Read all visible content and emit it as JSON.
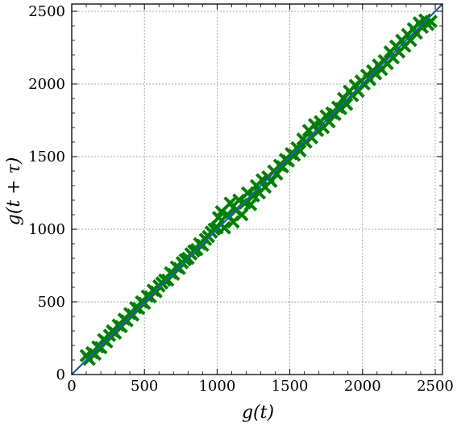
{
  "chart_data": {
    "type": "scatter",
    "xlabel": "g(t)",
    "ylabel": "g(t + τ)",
    "xlim": [
      0,
      2550
    ],
    "ylim": [
      0,
      2550
    ],
    "xticks": [
      0,
      500,
      1000,
      1500,
      2000,
      2500
    ],
    "yticks": [
      0,
      500,
      1000,
      1500,
      2000,
      2500
    ],
    "xtick_labels": [
      "0",
      "500",
      "1000",
      "1500",
      "2000",
      "2500"
    ],
    "ytick_labels": [
      "0",
      "500",
      "1000",
      "1500",
      "2000",
      "2500"
    ],
    "grid": true,
    "series": [
      {
        "marker": "x",
        "color": "#008000",
        "points": [
          [
            100,
            130
          ],
          [
            120,
            105
          ],
          [
            140,
            150
          ],
          [
            160,
            140
          ],
          [
            180,
            190
          ],
          [
            200,
            185
          ],
          [
            220,
            240
          ],
          [
            240,
            225
          ],
          [
            260,
            270
          ],
          [
            280,
            300
          ],
          [
            300,
            285
          ],
          [
            320,
            340
          ],
          [
            340,
            330
          ],
          [
            360,
            380
          ],
          [
            380,
            370
          ],
          [
            400,
            420
          ],
          [
            420,
            410
          ],
          [
            440,
            460
          ],
          [
            460,
            455
          ],
          [
            480,
            500
          ],
          [
            500,
            490
          ],
          [
            520,
            540
          ],
          [
            540,
            535
          ],
          [
            560,
            580
          ],
          [
            580,
            570
          ],
          [
            600,
            610
          ],
          [
            620,
            630
          ],
          [
            640,
            650
          ],
          [
            660,
            650
          ],
          [
            680,
            700
          ],
          [
            700,
            690
          ],
          [
            720,
            740
          ],
          [
            740,
            730
          ],
          [
            760,
            770
          ],
          [
            780,
            790
          ],
          [
            800,
            800
          ],
          [
            820,
            830
          ],
          [
            840,
            850
          ],
          [
            860,
            860
          ],
          [
            880,
            900
          ],
          [
            900,
            890
          ],
          [
            920,
            930
          ],
          [
            940,
            950
          ],
          [
            960,
            980
          ],
          [
            980,
            1000
          ],
          [
            1000,
            1010
          ],
          [
            1010,
            1080
          ],
          [
            1030,
            1120
          ],
          [
            1050,
            1010
          ],
          [
            1070,
            1100
          ],
          [
            1090,
            1180
          ],
          [
            1110,
            1050
          ],
          [
            1130,
            1130
          ],
          [
            1150,
            1200
          ],
          [
            1170,
            1100
          ],
          [
            1190,
            1180
          ],
          [
            1210,
            1250
          ],
          [
            1230,
            1170
          ],
          [
            1250,
            1230
          ],
          [
            1270,
            1300
          ],
          [
            1290,
            1250
          ],
          [
            1310,
            1340
          ],
          [
            1330,
            1290
          ],
          [
            1350,
            1360
          ],
          [
            1370,
            1330
          ],
          [
            1390,
            1400
          ],
          [
            1410,
            1380
          ],
          [
            1430,
            1440
          ],
          [
            1450,
            1430
          ],
          [
            1470,
            1480
          ],
          [
            1490,
            1470
          ],
          [
            1510,
            1520
          ],
          [
            1530,
            1510
          ],
          [
            1550,
            1560
          ],
          [
            1570,
            1540
          ],
          [
            1590,
            1620
          ],
          [
            1610,
            1600
          ],
          [
            1630,
            1680
          ],
          [
            1650,
            1630
          ],
          [
            1670,
            1720
          ],
          [
            1690,
            1680
          ],
          [
            1710,
            1740
          ],
          [
            1730,
            1700
          ],
          [
            1750,
            1780
          ],
          [
            1770,
            1740
          ],
          [
            1790,
            1800
          ],
          [
            1810,
            1790
          ],
          [
            1830,
            1840
          ],
          [
            1850,
            1830
          ],
          [
            1870,
            1900
          ],
          [
            1890,
            1860
          ],
          [
            1910,
            1950
          ],
          [
            1930,
            1920
          ],
          [
            1950,
            1990
          ],
          [
            1970,
            1950
          ],
          [
            1990,
            2020
          ],
          [
            2010,
            2000
          ],
          [
            2030,
            2060
          ],
          [
            2050,
            2030
          ],
          [
            2070,
            2090
          ],
          [
            2090,
            2070
          ],
          [
            2110,
            2130
          ],
          [
            2130,
            2100
          ],
          [
            2150,
            2160
          ],
          [
            2170,
            2140
          ],
          [
            2190,
            2220
          ],
          [
            2210,
            2180
          ],
          [
            2230,
            2260
          ],
          [
            2250,
            2220
          ],
          [
            2270,
            2300
          ],
          [
            2290,
            2260
          ],
          [
            2310,
            2340
          ],
          [
            2330,
            2300
          ],
          [
            2350,
            2380
          ],
          [
            2370,
            2350
          ],
          [
            2390,
            2420
          ],
          [
            2410,
            2390
          ],
          [
            2430,
            2440
          ],
          [
            2450,
            2410
          ],
          [
            2470,
            2430
          ]
        ]
      }
    ],
    "reference_line": {
      "x": [
        0,
        2550
      ],
      "y": [
        0,
        2550
      ],
      "color": "#1f5fa0"
    }
  }
}
